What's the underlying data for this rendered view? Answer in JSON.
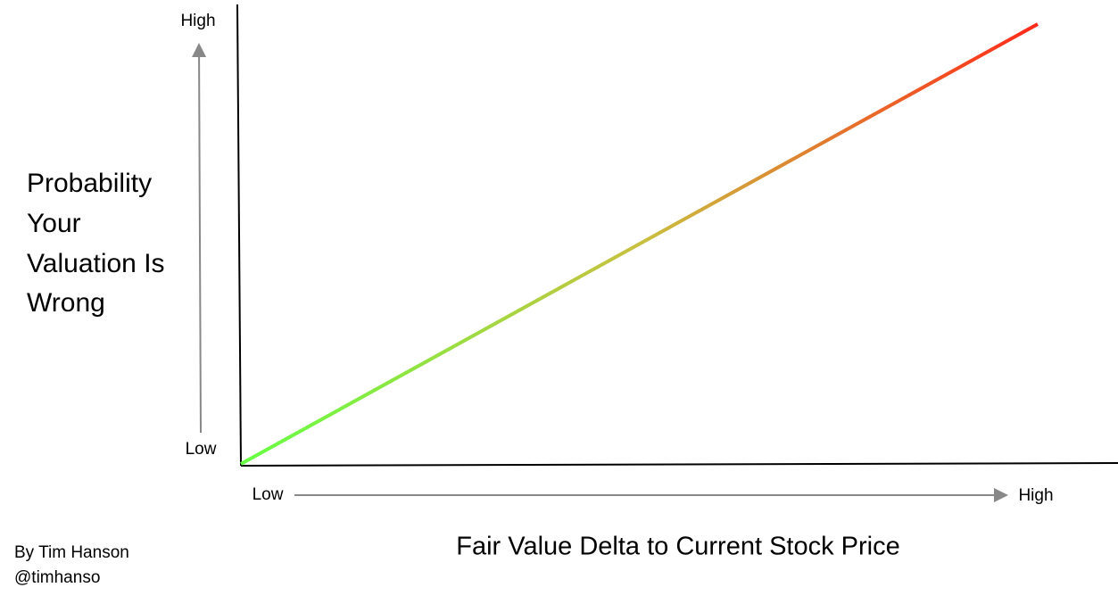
{
  "y_axis": {
    "high": "High",
    "low": "Low",
    "title_lines": [
      "Probability",
      "Your",
      "Valuation Is",
      "Wrong"
    ]
  },
  "x_axis": {
    "low": "Low",
    "high": "High",
    "title": "Fair Value Delta to Current Stock Price"
  },
  "credit": {
    "author": "By Tim Hanson",
    "handle": "@timhanso"
  }
}
